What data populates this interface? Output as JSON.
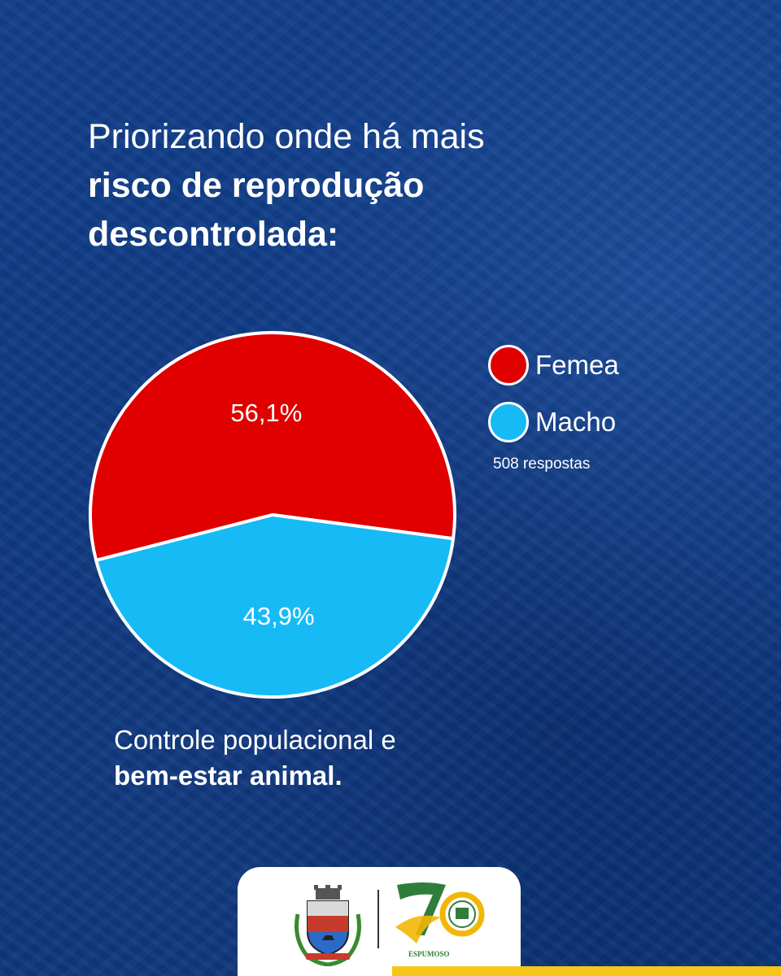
{
  "headline": {
    "line1": "Priorizando onde há mais",
    "line2": "risco de reprodução",
    "line3": "descontrolada:"
  },
  "chart_data": {
    "type": "pie",
    "title": "",
    "categories": [
      "Femea",
      "Macho"
    ],
    "values": [
      56.1,
      43.9
    ],
    "value_labels": [
      "56,1%",
      "43,9%"
    ],
    "colors": [
      "#e10000",
      "#16bbf6"
    ],
    "legend_position": "right",
    "note": "508 respostas"
  },
  "footer": {
    "line1": "Controle populacional e",
    "line2": "bem-estar animal."
  },
  "logos": {
    "emblem_text": "ESPUMOSO"
  }
}
